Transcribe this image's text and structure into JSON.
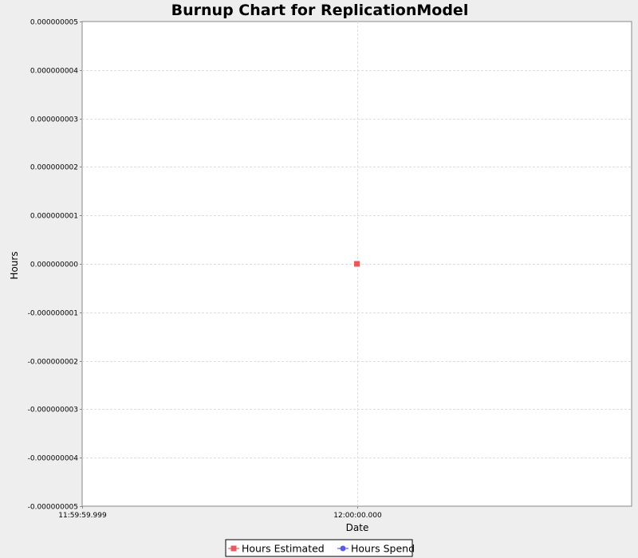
{
  "chart_data": {
    "type": "line",
    "title": "Burnup Chart for ReplicationModel",
    "xlabel": "Date",
    "ylabel": "Hours",
    "x_tick_labels": [
      "11:59:59.999",
      "12:00:00.000"
    ],
    "y_tick_labels": [
      "0.000000005",
      "0.000000004",
      "0.000000003",
      "0.000000002",
      "0.000000001",
      "0.000000000",
      "-0.000000001",
      "-0.000000002",
      "-0.000000003",
      "-0.000000004",
      "-0.000000005"
    ],
    "y_ticks": [
      5e-09,
      4e-09,
      3e-09,
      2e-09,
      1e-09,
      0,
      -1e-09,
      -2e-09,
      -3e-09,
      -4e-09,
      -5e-09
    ],
    "ylim": [
      -5e-09,
      5e-09
    ],
    "xlim": [
      "11:59:59.999",
      "12:00:00.001"
    ],
    "grid": true,
    "legend_position": "bottom",
    "series": [
      {
        "name": "Hours Estimated",
        "color": "#e8585c",
        "marker": "square",
        "points": [
          {
            "x": "12:00:00.000",
            "y": 0
          }
        ]
      },
      {
        "name": "Hours Spend",
        "color": "#5a5ae8",
        "marker": "circle",
        "points": []
      }
    ]
  }
}
